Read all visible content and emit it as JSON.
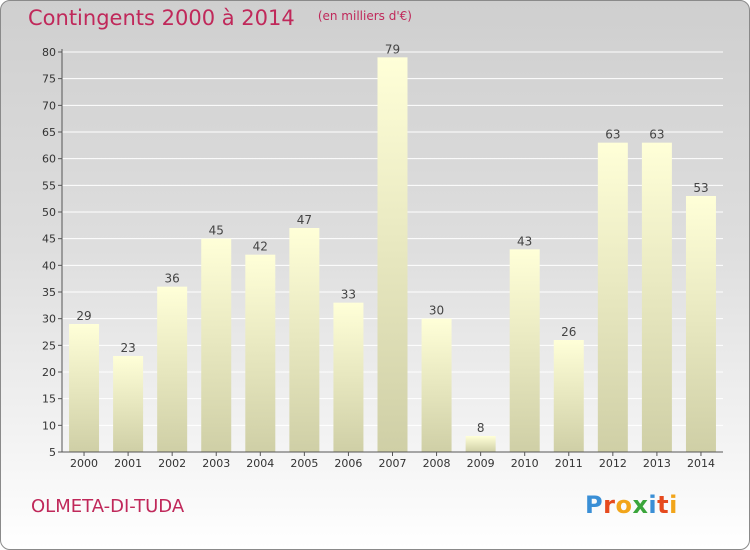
{
  "header": {
    "title": "Contingents 2000 à 2014",
    "unit": "(en milliers d'€)"
  },
  "footer": {
    "commune": "OLMETA-DI-TUDA",
    "logo_text": "Proxiti",
    "logo_colors": [
      "#3a8fd6",
      "#e64a1e",
      "#f2a51a",
      "#3aa53a",
      "#3a8fd6",
      "#e64a1e",
      "#f2a51a"
    ]
  },
  "colors": {
    "title": "#c0285a",
    "bar_top": "#ffffd8",
    "bar_bottom": "#cfcfa6",
    "grid": "#ffffff"
  },
  "chart_data": {
    "type": "bar",
    "categories": [
      "2000",
      "2001",
      "2002",
      "2003",
      "2004",
      "2005",
      "2006",
      "2007",
      "2008",
      "2009",
      "2010",
      "2011",
      "2012",
      "2013",
      "2014"
    ],
    "values": [
      29,
      23,
      36,
      45,
      42,
      47,
      33,
      79,
      30,
      8,
      43,
      26,
      63,
      63,
      53
    ],
    "ylim": [
      5,
      80
    ],
    "yticks": [
      5,
      10,
      15,
      20,
      25,
      30,
      35,
      40,
      45,
      50,
      55,
      60,
      65,
      70,
      75,
      80
    ],
    "grid": true,
    "data_labels": true
  }
}
